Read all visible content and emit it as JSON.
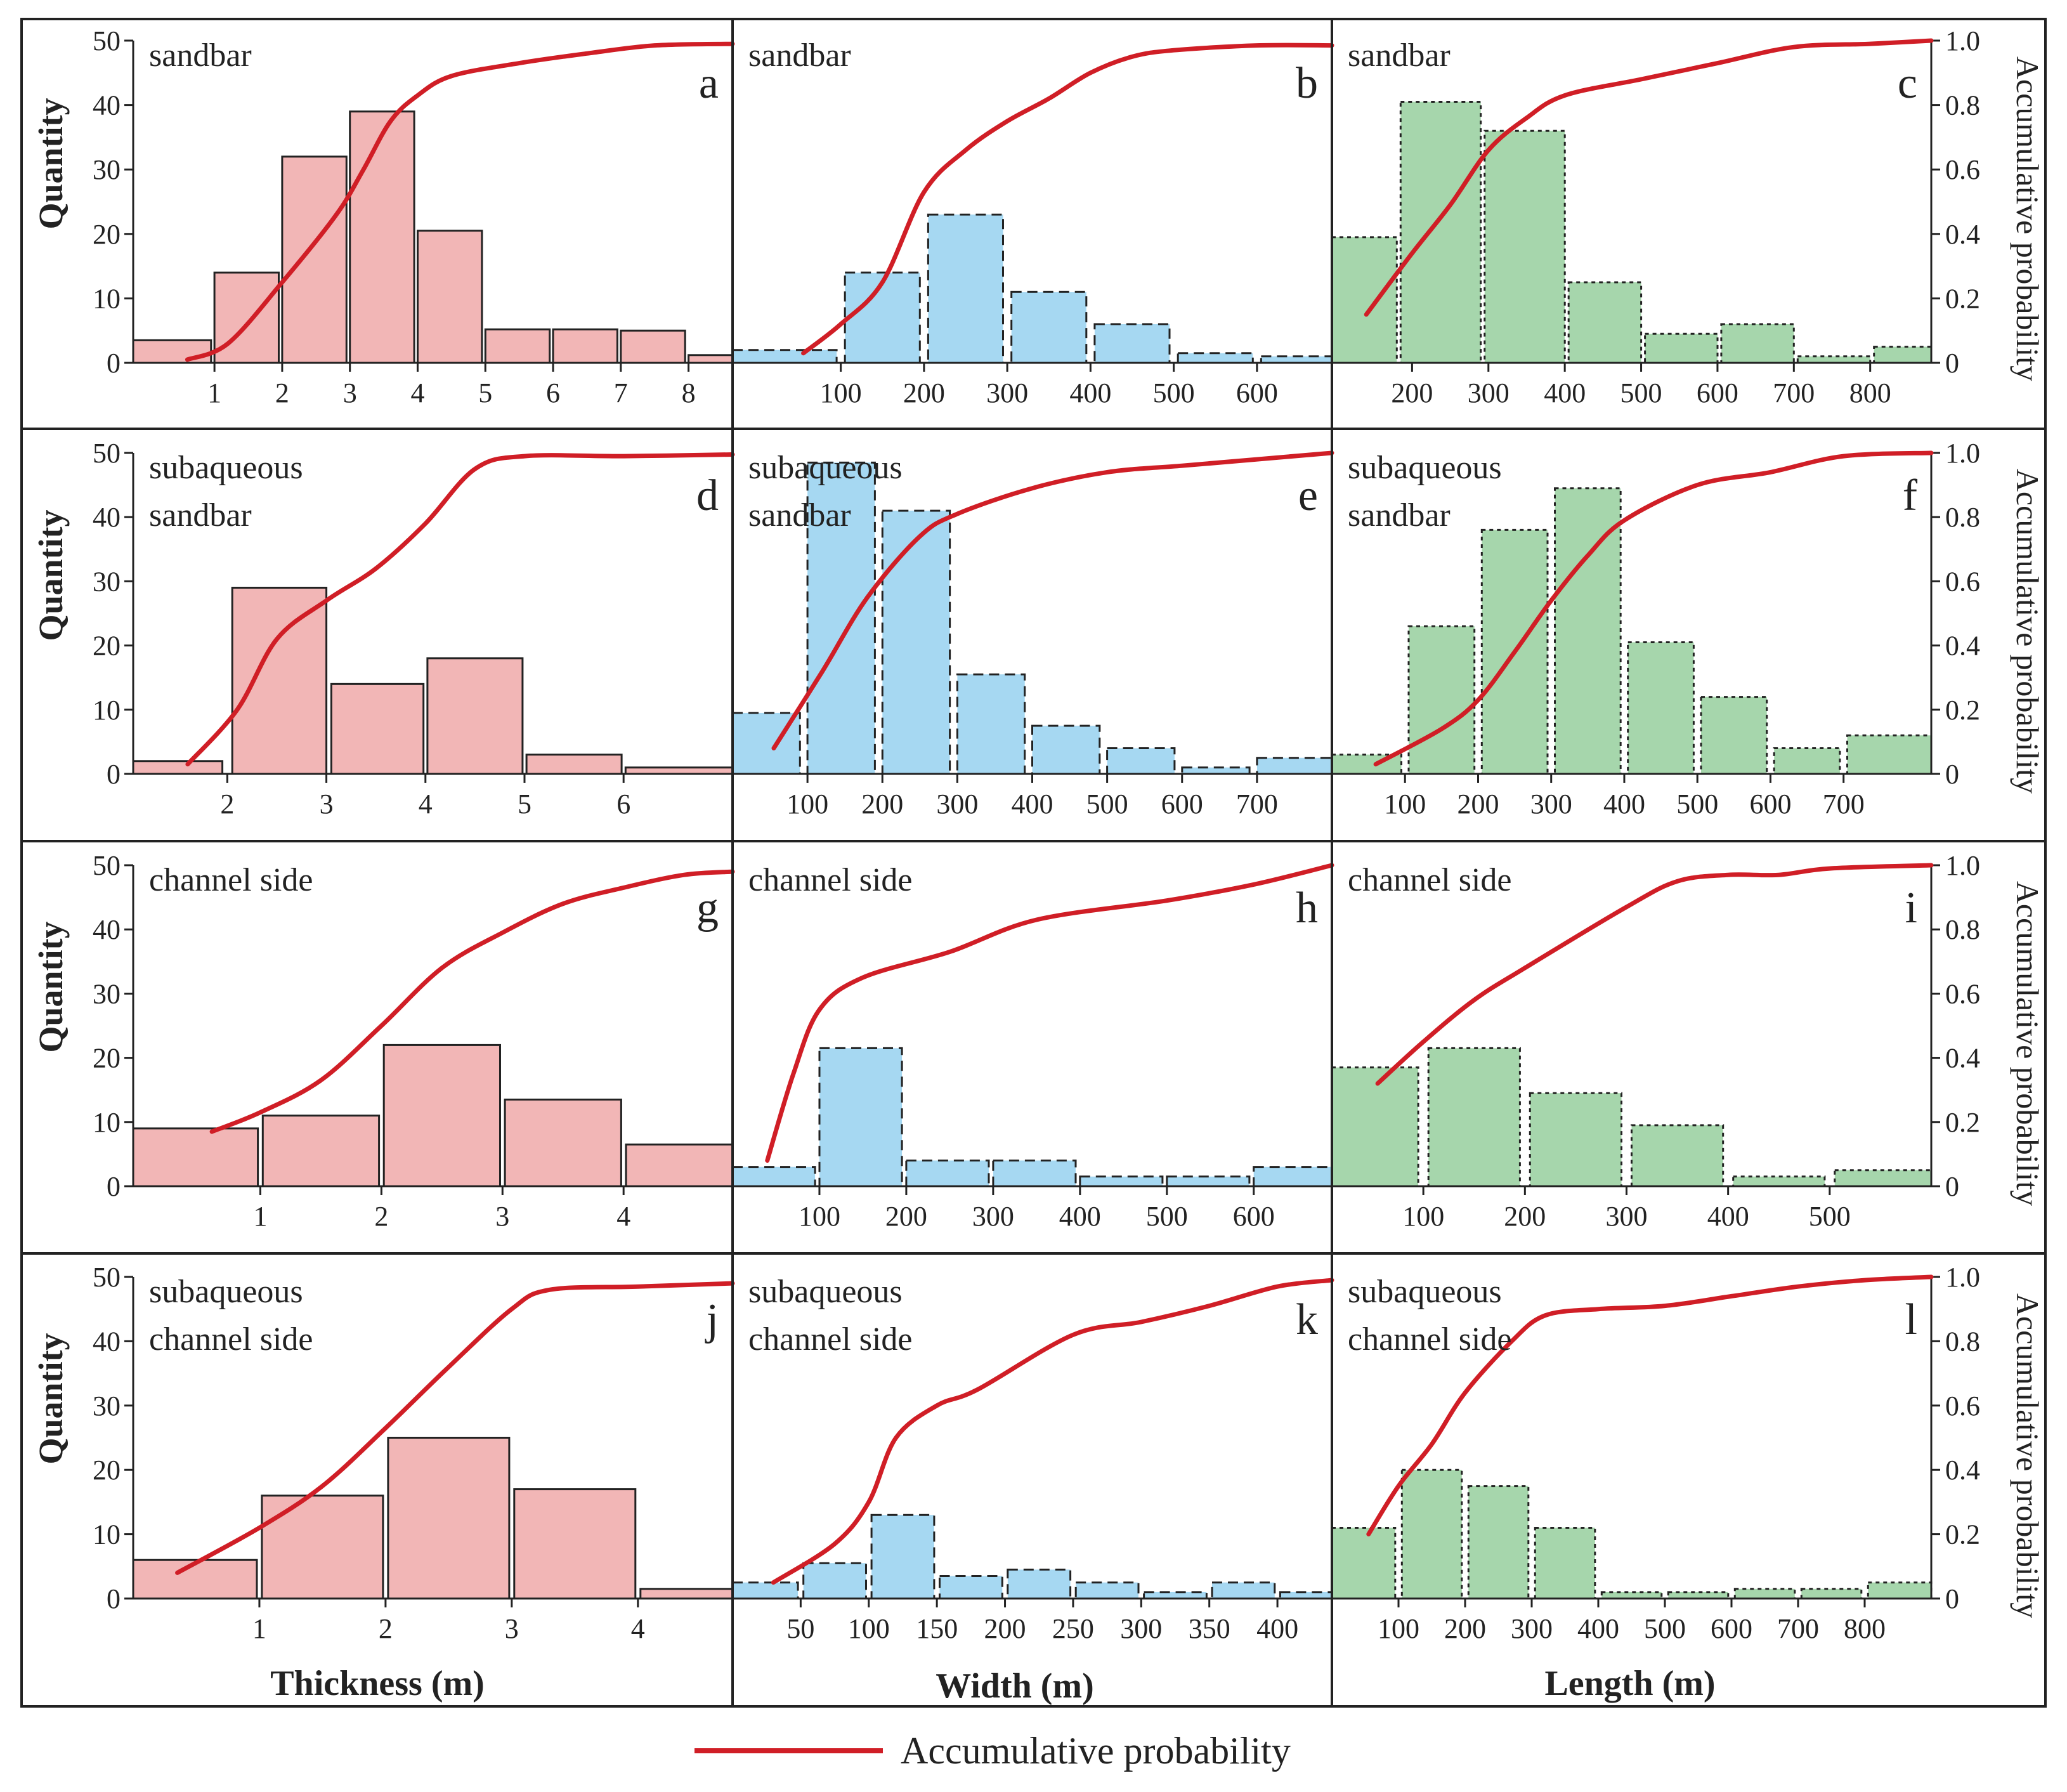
{
  "figure": {
    "left_axis_label": "Quantity",
    "right_axis_label": "Accumulative probability",
    "x_axis_labels": [
      "Thickness (m)",
      "Width (m)",
      "Length (m)"
    ],
    "legend_label": "Accumulative probability",
    "colors": {
      "thickness": "#f2b6b6",
      "width": "#a6d8f2",
      "length": "#a6d6ac",
      "curve": "#d01e26",
      "frame": "#222222"
    }
  },
  "chart_data": [
    {
      "id": "a",
      "type": "bar",
      "letter": "a",
      "label": [
        "sandbar"
      ],
      "metric": "thickness",
      "xlim": [
        -0.2,
        8.65
      ],
      "ylim": [
        0,
        50
      ],
      "xticks": [
        1,
        2,
        3,
        4,
        5,
        6,
        7,
        8
      ],
      "bins": [
        [
          -0.2,
          0.95
        ],
        [
          1,
          1.95
        ],
        [
          2,
          2.95
        ],
        [
          3,
          3.95
        ],
        [
          4,
          4.95
        ],
        [
          5,
          5.95
        ],
        [
          6,
          6.95
        ],
        [
          7,
          7.95
        ],
        [
          8,
          8.65
        ]
      ],
      "values": [
        3.5,
        14,
        32,
        39,
        20.5,
        5.2,
        5.2,
        5,
        1.2
      ],
      "curve": [
        [
          0.6,
          0.01
        ],
        [
          1.2,
          0.06
        ],
        [
          2,
          0.25
        ],
        [
          2.8,
          0.46
        ],
        [
          3.2,
          0.6
        ],
        [
          3.6,
          0.75
        ],
        [
          4,
          0.83
        ],
        [
          4.5,
          0.89
        ],
        [
          5.5,
          0.93
        ],
        [
          6.5,
          0.96
        ],
        [
          7.5,
          0.985
        ],
        [
          8.65,
          0.99
        ]
      ]
    },
    {
      "id": "b",
      "type": "bar",
      "letter": "b",
      "label": [
        "sandbar"
      ],
      "metric": "width",
      "xlim": [
        -30,
        690
      ],
      "yaxis": false,
      "xticks": [
        100,
        200,
        300,
        400,
        500,
        600
      ],
      "bins": [
        [
          -30,
          95
        ],
        [
          105,
          195
        ],
        [
          205,
          295
        ],
        [
          305,
          395
        ],
        [
          405,
          495
        ],
        [
          505,
          595
        ],
        [
          605,
          690
        ]
      ],
      "values": [
        2,
        14,
        23,
        11,
        6,
        1.5,
        1
      ],
      "curve": [
        [
          55,
          0.03
        ],
        [
          100,
          0.12
        ],
        [
          150,
          0.25
        ],
        [
          200,
          0.53
        ],
        [
          250,
          0.66
        ],
        [
          300,
          0.75
        ],
        [
          350,
          0.82
        ],
        [
          400,
          0.9
        ],
        [
          450,
          0.95
        ],
        [
          500,
          0.97
        ],
        [
          600,
          0.985
        ],
        [
          690,
          0.985
        ]
      ]
    },
    {
      "id": "c",
      "type": "bar",
      "letter": "c",
      "label": [
        "sandbar"
      ],
      "metric": "length",
      "xlim": [
        95,
        880
      ],
      "yaxis": false,
      "right_axis": true,
      "xticks": [
        200,
        300,
        400,
        500,
        600,
        700,
        800
      ],
      "bins": [
        [
          95,
          180
        ],
        [
          185,
          290
        ],
        [
          295,
          400
        ],
        [
          405,
          500
        ],
        [
          505,
          600
        ],
        [
          605,
          700
        ],
        [
          705,
          800
        ],
        [
          805,
          880
        ]
      ],
      "values": [
        19.5,
        40.5,
        36,
        12.5,
        4.5,
        6,
        1,
        2.5
      ],
      "curve": [
        [
          140,
          0.15
        ],
        [
          200,
          0.34
        ],
        [
          250,
          0.49
        ],
        [
          300,
          0.66
        ],
        [
          350,
          0.76
        ],
        [
          400,
          0.83
        ],
        [
          500,
          0.88
        ],
        [
          600,
          0.93
        ],
        [
          700,
          0.98
        ],
        [
          800,
          0.99
        ],
        [
          880,
          1.0
        ]
      ]
    },
    {
      "id": "d",
      "type": "bar",
      "letter": "d",
      "label": [
        "subaqueous",
        "sandbar"
      ],
      "metric": "thickness",
      "xlim": [
        1.05,
        7.1
      ],
      "xticks": [
        2,
        3,
        4,
        5,
        6
      ],
      "bins": [
        [
          1.05,
          1.95
        ],
        [
          2.05,
          3.0
        ],
        [
          3.05,
          3.98
        ],
        [
          4.02,
          4.98
        ],
        [
          5.02,
          5.98
        ],
        [
          6.02,
          7.1
        ]
      ],
      "values": [
        2,
        29,
        14,
        18,
        3,
        1
      ],
      "curve": [
        [
          1.6,
          0.03
        ],
        [
          2.1,
          0.2
        ],
        [
          2.5,
          0.42
        ],
        [
          3.0,
          0.54
        ],
        [
          3.5,
          0.64
        ],
        [
          4.0,
          0.78
        ],
        [
          4.5,
          0.95
        ],
        [
          5.0,
          0.99
        ],
        [
          6.0,
          0.99
        ],
        [
          7.1,
          0.995
        ]
      ]
    },
    {
      "id": "e",
      "type": "bar",
      "letter": "e",
      "label": [
        "subaqueous",
        "sandbar"
      ],
      "metric": "width",
      "xlim": [
        0,
        800
      ],
      "yaxis": false,
      "xticks": [
        100,
        200,
        300,
        400,
        500,
        600,
        700
      ],
      "bins": [
        [
          0,
          90
        ],
        [
          100,
          190
        ],
        [
          200,
          290
        ],
        [
          300,
          390
        ],
        [
          400,
          490
        ],
        [
          500,
          590
        ],
        [
          600,
          690
        ],
        [
          700,
          800
        ]
      ],
      "values": [
        9.5,
        48.5,
        41,
        15.5,
        7.5,
        4,
        1,
        2.5
      ],
      "curve": [
        [
          55,
          0.08
        ],
        [
          120,
          0.32
        ],
        [
          180,
          0.55
        ],
        [
          250,
          0.74
        ],
        [
          300,
          0.81
        ],
        [
          400,
          0.89
        ],
        [
          500,
          0.94
        ],
        [
          600,
          0.96
        ],
        [
          700,
          0.98
        ],
        [
          800,
          1.0
        ]
      ]
    },
    {
      "id": "f",
      "type": "bar",
      "letter": "f",
      "label": [
        "subaqueous",
        "sandbar"
      ],
      "metric": "length",
      "xlim": [
        0,
        820
      ],
      "yaxis": false,
      "right_axis": true,
      "xticks": [
        100,
        200,
        300,
        400,
        500,
        600,
        700
      ],
      "bins": [
        [
          0,
          95
        ],
        [
          105,
          195
        ],
        [
          205,
          295
        ],
        [
          305,
          395
        ],
        [
          405,
          495
        ],
        [
          505,
          595
        ],
        [
          605,
          695
        ],
        [
          705,
          820
        ]
      ],
      "values": [
        3,
        23,
        38,
        44.5,
        20.5,
        12,
        4,
        6
      ],
      "curve": [
        [
          60,
          0.03
        ],
        [
          150,
          0.14
        ],
        [
          200,
          0.23
        ],
        [
          250,
          0.38
        ],
        [
          300,
          0.54
        ],
        [
          350,
          0.68
        ],
        [
          400,
          0.79
        ],
        [
          500,
          0.9
        ],
        [
          600,
          0.94
        ],
        [
          700,
          0.99
        ],
        [
          820,
          1.0
        ]
      ]
    },
    {
      "id": "g",
      "type": "bar",
      "letter": "g",
      "label": [
        "channel side"
      ],
      "metric": "thickness",
      "xlim": [
        -0.05,
        4.9
      ],
      "xticks": [
        1,
        2,
        3,
        4
      ],
      "bins": [
        [
          -0.05,
          0.98
        ],
        [
          1.02,
          1.98
        ],
        [
          2.02,
          2.98
        ],
        [
          3.02,
          3.98
        ],
        [
          4.02,
          4.9
        ]
      ],
      "values": [
        9,
        11,
        22,
        13.5,
        6.5
      ],
      "curve": [
        [
          0.6,
          0.17
        ],
        [
          1.0,
          0.23
        ],
        [
          1.5,
          0.33
        ],
        [
          2.0,
          0.5
        ],
        [
          2.5,
          0.68
        ],
        [
          3.0,
          0.79
        ],
        [
          3.5,
          0.88
        ],
        [
          4.0,
          0.93
        ],
        [
          4.5,
          0.97
        ],
        [
          4.9,
          0.98
        ]
      ]
    },
    {
      "id": "h",
      "type": "bar",
      "letter": "h",
      "label": [
        "channel side"
      ],
      "metric": "width",
      "xlim": [
        0,
        690
      ],
      "yaxis": false,
      "xticks": [
        100,
        200,
        300,
        400,
        500,
        600
      ],
      "bins": [
        [
          0,
          95
        ],
        [
          100,
          195
        ],
        [
          200,
          295
        ],
        [
          300,
          395
        ],
        [
          400,
          495
        ],
        [
          500,
          595
        ],
        [
          600,
          690
        ]
      ],
      "values": [
        3,
        21.5,
        4,
        4,
        1.5,
        1.5,
        3
      ],
      "curve": [
        [
          40,
          0.08
        ],
        [
          70,
          0.35
        ],
        [
          100,
          0.55
        ],
        [
          150,
          0.65
        ],
        [
          250,
          0.73
        ],
        [
          350,
          0.83
        ],
        [
          500,
          0.89
        ],
        [
          600,
          0.94
        ],
        [
          690,
          1.0
        ]
      ]
    },
    {
      "id": "i",
      "type": "bar",
      "letter": "i",
      "label": [
        "channel side"
      ],
      "metric": "length",
      "xlim": [
        10,
        600
      ],
      "yaxis": false,
      "right_axis": true,
      "xticks": [
        100,
        200,
        300,
        400,
        500
      ],
      "bins": [
        [
          10,
          95
        ],
        [
          105,
          195
        ],
        [
          205,
          295
        ],
        [
          305,
          395
        ],
        [
          405,
          495
        ],
        [
          505,
          600
        ]
      ],
      "values": [
        18.5,
        21.5,
        14.5,
        9.5,
        1.5,
        2.5
      ],
      "curve": [
        [
          55,
          0.32
        ],
        [
          100,
          0.45
        ],
        [
          150,
          0.58
        ],
        [
          200,
          0.68
        ],
        [
          300,
          0.87
        ],
        [
          350,
          0.95
        ],
        [
          400,
          0.97
        ],
        [
          450,
          0.97
        ],
        [
          500,
          0.99
        ],
        [
          600,
          1.0
        ]
      ]
    },
    {
      "id": "j",
      "type": "bar",
      "letter": "j",
      "label": [
        "subaqueous",
        "channel side"
      ],
      "metric": "thickness",
      "xlim": [
        0,
        4.75
      ],
      "xticks": [
        1,
        2,
        3,
        4
      ],
      "bins": [
        [
          0,
          0.98
        ],
        [
          1.02,
          1.98
        ],
        [
          2.02,
          2.98
        ],
        [
          3.02,
          3.98
        ],
        [
          4.02,
          4.75
        ]
      ],
      "values": [
        6,
        16,
        25,
        17,
        1.5
      ],
      "curve": [
        [
          0.35,
          0.08
        ],
        [
          1.0,
          0.22
        ],
        [
          1.5,
          0.35
        ],
        [
          2.0,
          0.53
        ],
        [
          2.5,
          0.72
        ],
        [
          3.0,
          0.9
        ],
        [
          3.3,
          0.96
        ],
        [
          4.0,
          0.97
        ],
        [
          4.75,
          0.98
        ]
      ]
    },
    {
      "id": "k",
      "type": "bar",
      "letter": "k",
      "label": [
        "subaqueous",
        "channel side"
      ],
      "metric": "width",
      "xlim": [
        0,
        440
      ],
      "yaxis": false,
      "xticks": [
        50,
        100,
        150,
        200,
        250,
        300,
        350,
        400
      ],
      "bins": [
        [
          0,
          48
        ],
        [
          52,
          98
        ],
        [
          102,
          148
        ],
        [
          152,
          198
        ],
        [
          202,
          248
        ],
        [
          252,
          298
        ],
        [
          302,
          348
        ],
        [
          352,
          398
        ],
        [
          402,
          440
        ]
      ],
      "values": [
        2.5,
        5.5,
        13,
        3.5,
        4.5,
        2.5,
        1,
        2.5,
        1
      ],
      "curve": [
        [
          30,
          0.05
        ],
        [
          75,
          0.17
        ],
        [
          100,
          0.3
        ],
        [
          120,
          0.5
        ],
        [
          150,
          0.6
        ],
        [
          180,
          0.65
        ],
        [
          250,
          0.82
        ],
        [
          300,
          0.86
        ],
        [
          350,
          0.91
        ],
        [
          400,
          0.97
        ],
        [
          440,
          0.99
        ]
      ]
    },
    {
      "id": "l",
      "type": "bar",
      "letter": "l",
      "label": [
        "subaqueous",
        "channel side"
      ],
      "metric": "length",
      "xlim": [
        0,
        900
      ],
      "yaxis": false,
      "right_axis": true,
      "xticks": [
        100,
        200,
        300,
        400,
        500,
        600,
        700,
        800
      ],
      "bins": [
        [
          0,
          95
        ],
        [
          105,
          195
        ],
        [
          205,
          295
        ],
        [
          305,
          395
        ],
        [
          405,
          495
        ],
        [
          505,
          595
        ],
        [
          605,
          695
        ],
        [
          705,
          795
        ],
        [
          805,
          900
        ]
      ],
      "values": [
        11,
        20,
        17.5,
        11,
        1,
        1,
        1.5,
        1.5,
        2.5
      ],
      "curve": [
        [
          55,
          0.2
        ],
        [
          100,
          0.35
        ],
        [
          150,
          0.48
        ],
        [
          200,
          0.64
        ],
        [
          270,
          0.8
        ],
        [
          320,
          0.88
        ],
        [
          400,
          0.9
        ],
        [
          500,
          0.91
        ],
        [
          600,
          0.94
        ],
        [
          700,
          0.97
        ],
        [
          800,
          0.99
        ],
        [
          900,
          1.0
        ]
      ]
    }
  ]
}
